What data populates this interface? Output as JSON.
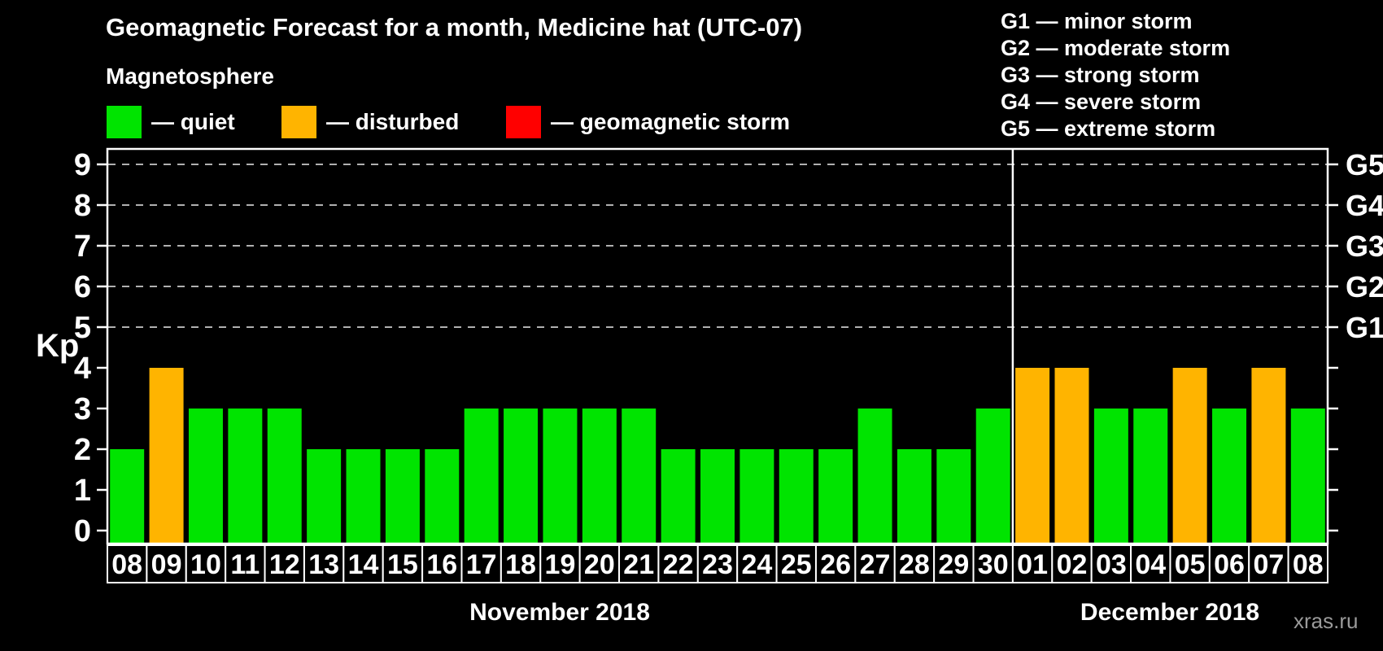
{
  "header": {
    "title": "Geomagnetic Forecast for a month, Medicine hat (UTC-07)",
    "subtitle": "Magnetosphere"
  },
  "legend": {
    "items": [
      {
        "key": "quiet",
        "label": "— quiet",
        "color": "#00e400"
      },
      {
        "key": "disturbed",
        "label": "— disturbed",
        "color": "#ffb400"
      },
      {
        "key": "storm",
        "label": "— geomagnetic storm",
        "color": "#ff0000"
      }
    ]
  },
  "g_legend": {
    "items": [
      "G1 — minor storm",
      "G2 — moderate storm",
      "G3 — strong storm",
      "G4 — severe storm",
      "G5 — extreme storm"
    ]
  },
  "chart_data": {
    "type": "bar",
    "title": "Geomagnetic Forecast for a month, Medicine hat (UTC-07)",
    "ylabel": "Kp",
    "ylim": [
      0,
      9.4
    ],
    "yticks": [
      0,
      1,
      2,
      3,
      4,
      5,
      6,
      7,
      8,
      9
    ],
    "gridlines": [
      5,
      6,
      7,
      8,
      9
    ],
    "grid_style": "dashed horizontal",
    "legend_position": "top-left",
    "right_axis": [
      {
        "kp": 5,
        "label": "G1"
      },
      {
        "kp": 6,
        "label": "G2"
      },
      {
        "kp": 7,
        "label": "G3"
      },
      {
        "kp": 8,
        "label": "G4"
      },
      {
        "kp": 9,
        "label": "G5"
      }
    ],
    "months": [
      {
        "label": "November 2018",
        "count": 23
      },
      {
        "label": "December 2018",
        "count": 8
      }
    ],
    "colors": {
      "quiet": "#00e400",
      "disturbed": "#ffb400",
      "storm": "#ff0000"
    },
    "bars": [
      {
        "day": "08",
        "kp": 2,
        "status": "quiet"
      },
      {
        "day": "09",
        "kp": 4,
        "status": "disturbed"
      },
      {
        "day": "10",
        "kp": 3,
        "status": "quiet"
      },
      {
        "day": "11",
        "kp": 3,
        "status": "quiet"
      },
      {
        "day": "12",
        "kp": 3,
        "status": "quiet"
      },
      {
        "day": "13",
        "kp": 2,
        "status": "quiet"
      },
      {
        "day": "14",
        "kp": 2,
        "status": "quiet"
      },
      {
        "day": "15",
        "kp": 2,
        "status": "quiet"
      },
      {
        "day": "16",
        "kp": 2,
        "status": "quiet"
      },
      {
        "day": "17",
        "kp": 3,
        "status": "quiet"
      },
      {
        "day": "18",
        "kp": 3,
        "status": "quiet"
      },
      {
        "day": "19",
        "kp": 3,
        "status": "quiet"
      },
      {
        "day": "20",
        "kp": 3,
        "status": "quiet"
      },
      {
        "day": "21",
        "kp": 3,
        "status": "quiet"
      },
      {
        "day": "22",
        "kp": 2,
        "status": "quiet"
      },
      {
        "day": "23",
        "kp": 2,
        "status": "quiet"
      },
      {
        "day": "24",
        "kp": 2,
        "status": "quiet"
      },
      {
        "day": "25",
        "kp": 2,
        "status": "quiet"
      },
      {
        "day": "26",
        "kp": 2,
        "status": "quiet"
      },
      {
        "day": "27",
        "kp": 3,
        "status": "quiet"
      },
      {
        "day": "28",
        "kp": 2,
        "status": "quiet"
      },
      {
        "day": "29",
        "kp": 2,
        "status": "quiet"
      },
      {
        "day": "30",
        "kp": 3,
        "status": "quiet"
      },
      {
        "day": "01",
        "kp": 4,
        "status": "disturbed"
      },
      {
        "day": "02",
        "kp": 4,
        "status": "disturbed"
      },
      {
        "day": "03",
        "kp": 3,
        "status": "quiet"
      },
      {
        "day": "04",
        "kp": 3,
        "status": "quiet"
      },
      {
        "day": "05",
        "kp": 4,
        "status": "disturbed"
      },
      {
        "day": "06",
        "kp": 3,
        "status": "quiet"
      },
      {
        "day": "07",
        "kp": 4,
        "status": "disturbed"
      },
      {
        "day": "08",
        "kp": 3,
        "status": "quiet"
      }
    ]
  },
  "footer": {
    "watermark": "xras.ru"
  }
}
